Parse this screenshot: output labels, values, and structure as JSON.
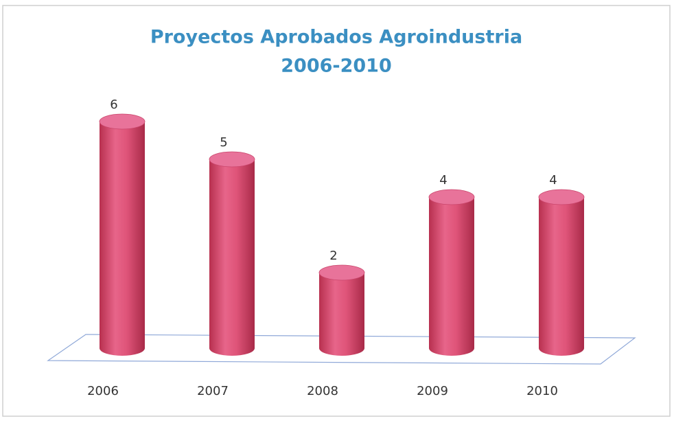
{
  "chart_data": {
    "type": "bar",
    "title": [
      "Proyectos Aprobados Agroindustria",
      "2006-2010"
    ],
    "categories": [
      "2006",
      "2007",
      "2008",
      "2009",
      "2010"
    ],
    "values": [
      6,
      5,
      2,
      4,
      4
    ],
    "color": "#d8456c"
  }
}
